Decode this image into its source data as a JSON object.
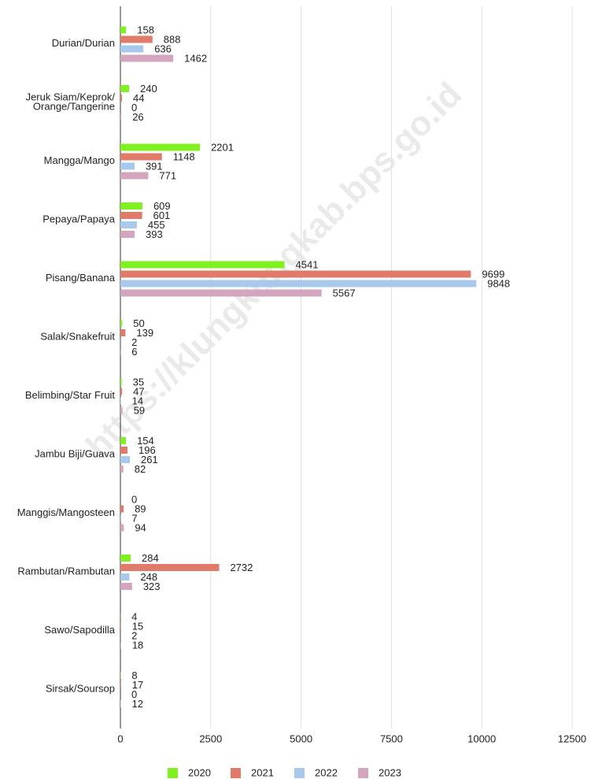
{
  "chart_data": {
    "type": "bar",
    "orientation": "horizontal",
    "watermark": "https://klungkungkab.bps.go.id",
    "categories": [
      "Durian/Durian",
      "Jeruk Siam/Keprok/Orange/Tangerine",
      "Mangga/Mango",
      "Pepaya/Papaya",
      "Pisang/Banana",
      "Salak/Snakefruit",
      "Belimbing/Star Fruit",
      "Jambu Biji/Guava",
      "Manggis/Mangosteen",
      "Rambutan/Rambutan",
      "Sawo/Sapodilla",
      "Sirsak/Soursop"
    ],
    "series": [
      {
        "name": "2020",
        "color": "#80f020",
        "values": [
          158,
          240,
          2201,
          609,
          4541,
          50,
          35,
          154,
          0,
          284,
          4,
          8
        ]
      },
      {
        "name": "2021",
        "color": "#e07b6a",
        "values": [
          888,
          44,
          1148,
          601,
          9699,
          139,
          47,
          196,
          89,
          2732,
          15,
          17
        ]
      },
      {
        "name": "2022",
        "color": "#a8c8ec",
        "values": [
          636,
          0,
          391,
          455,
          9848,
          2,
          14,
          261,
          7,
          248,
          2,
          0
        ]
      },
      {
        "name": "2023",
        "color": "#d4a5be",
        "values": [
          1462,
          26,
          771,
          393,
          5567,
          6,
          59,
          82,
          94,
          323,
          18,
          12
        ]
      }
    ],
    "xlim": [
      0,
      12500
    ],
    "xticks": [
      0,
      2500,
      5000,
      7500,
      10000,
      12500
    ],
    "grid": true,
    "legend": "bottom"
  }
}
